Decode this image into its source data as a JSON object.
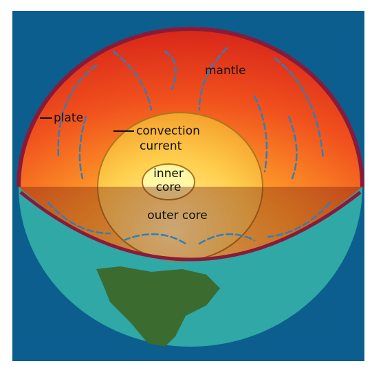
{
  "labels": {
    "mantle": "mantle",
    "plate": "plate",
    "convection_current": [
      "convection",
      "current"
    ],
    "inner_core": [
      "inner",
      "core"
    ],
    "outer_core": "outer core"
  }
}
